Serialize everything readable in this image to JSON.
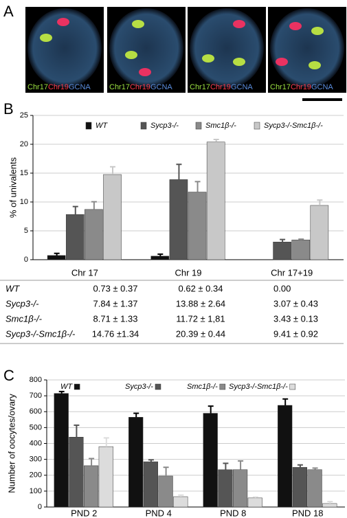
{
  "panel_labels": [
    "A",
    "B",
    "C"
  ],
  "images": {
    "channel_labels": [
      "Chr17",
      "Chr19",
      "GCNA"
    ]
  },
  "chart_data": [
    {
      "type": "bar",
      "y_label": "% of univalents",
      "categories": [
        "Chr 17",
        "Chr 19",
        "Chr 17+19"
      ],
      "series": [
        {
          "name": "WT",
          "color": "#111111",
          "values": [
            0.73,
            0.62,
            0.0
          ],
          "errors": [
            0.37,
            0.34,
            null
          ]
        },
        {
          "name": "Sycp3-/-",
          "color": "#555555",
          "values": [
            7.84,
            13.88,
            3.07
          ],
          "errors": [
            1.37,
            2.64,
            0.43
          ]
        },
        {
          "name": "Smc1β-/-",
          "color": "#8a8a8a",
          "values": [
            8.71,
            11.72,
            3.43
          ],
          "errors": [
            1.33,
            1.81,
            0.13
          ]
        },
        {
          "name": "Sycp3-/-Smc1β-/-",
          "color": "#c8c8c8",
          "values": [
            14.76,
            20.39,
            9.41
          ],
          "errors": [
            1.34,
            0.44,
            0.92
          ]
        }
      ],
      "ylim": [
        0,
        25
      ],
      "yticks": [
        0,
        5,
        10,
        15,
        20,
        25
      ],
      "grid": true
    },
    {
      "type": "bar",
      "y_label": "Number of oocytes/ovary",
      "categories": [
        "PND 2",
        "PND 4",
        "PND 8",
        "PND 18"
      ],
      "series": [
        {
          "name": "WT",
          "color": "#111111",
          "values": [
            715,
            565,
            590,
            640
          ],
          "errors": [
            12,
            25,
            45,
            40
          ]
        },
        {
          "name": "Sycp3-/-",
          "color": "#555555",
          "values": [
            440,
            285,
            235,
            250
          ],
          "errors": [
            75,
            12,
            40,
            15
          ]
        },
        {
          "name": "Smc1β-/-",
          "color": "#8a8a8a",
          "values": [
            260,
            195,
            235,
            235
          ],
          "errors": [
            45,
            55,
            55,
            10
          ]
        },
        {
          "name": "Sycp3-/-Smc1β-/-",
          "color": "#dcdcdc",
          "values": [
            380,
            65,
            57,
            22
          ],
          "errors": [
            55,
            10,
            5,
            12
          ]
        }
      ],
      "ylim": [
        0,
        800
      ],
      "yticks": [
        0,
        100,
        200,
        300,
        400,
        500,
        600,
        700,
        800
      ],
      "grid": true
    }
  ],
  "table": {
    "rows": [
      [
        "WT",
        "0.73 ± 0.37",
        "0.62 ± 0.34",
        "0.00"
      ],
      [
        "Sycp3-/-",
        "7.84 ± 1.37",
        "13.88 ± 2.64",
        "3.07 ± 0.43"
      ],
      [
        "Smc1β-/-",
        "8.71 ± 1.33",
        "11.72 ± 1,81",
        "3.43 ± 0.13"
      ],
      [
        "Sycp3-/-Smc1β-/-",
        "14.76 ±1.34",
        "20.39 ± 0.44",
        "9.41 ± 0.92"
      ]
    ]
  }
}
